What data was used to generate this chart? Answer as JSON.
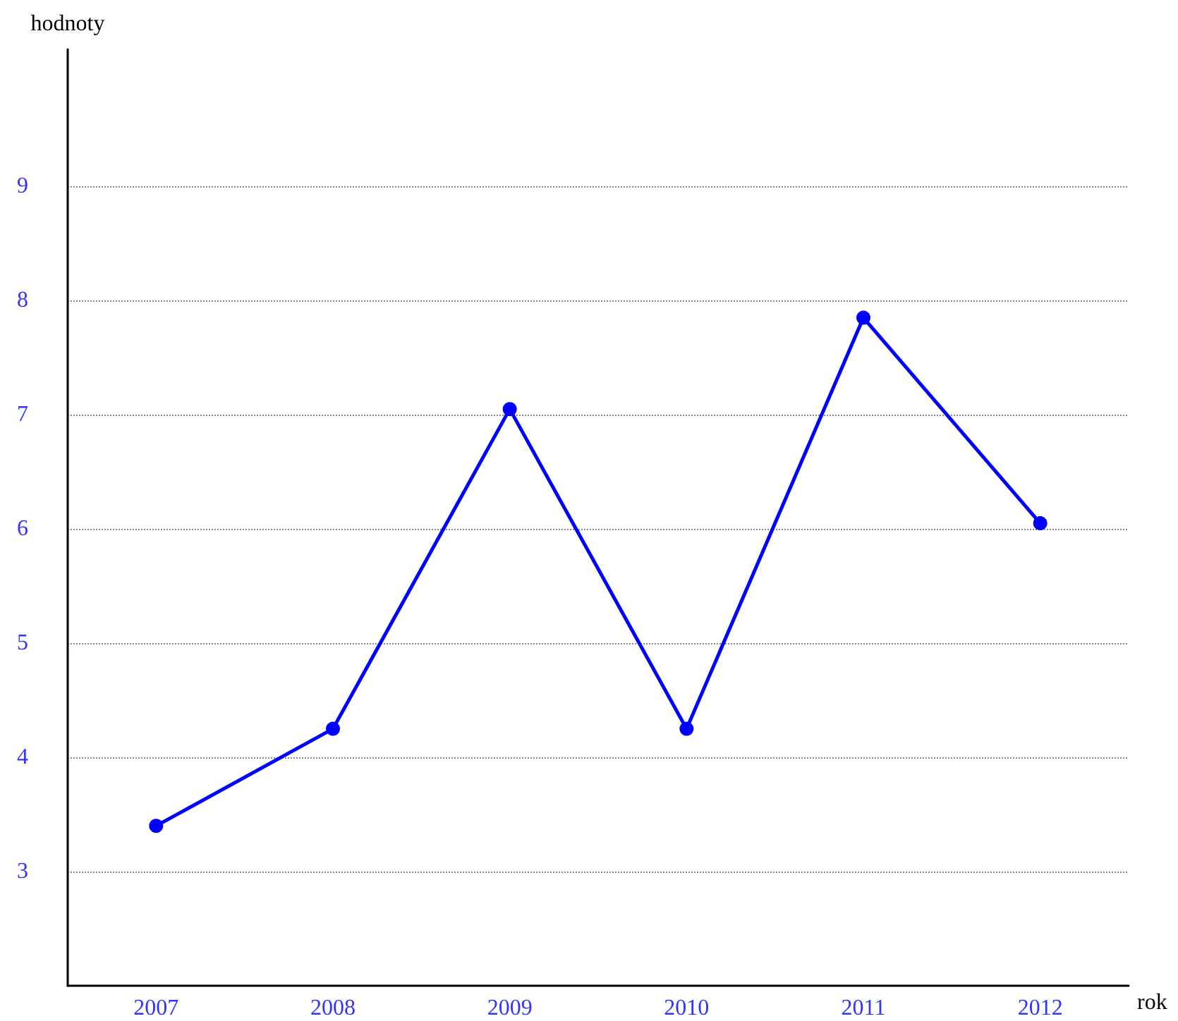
{
  "chart_data": {
    "type": "line",
    "xlabel": "rok",
    "ylabel": "hodnoty",
    "categories": [
      "2007",
      "2008",
      "2009",
      "2010",
      "2011",
      "2012"
    ],
    "series": [
      {
        "color": "#0000ff",
        "values": [
          3.4,
          4.25,
          7.05,
          4.25,
          7.85,
          6.05
        ]
      }
    ],
    "ylim": [
      2,
      10.2
    ],
    "yticks": [
      3,
      4,
      5,
      6,
      7,
      8,
      9
    ],
    "grid": "y",
    "marker": "circle",
    "line_style": "solid"
  }
}
